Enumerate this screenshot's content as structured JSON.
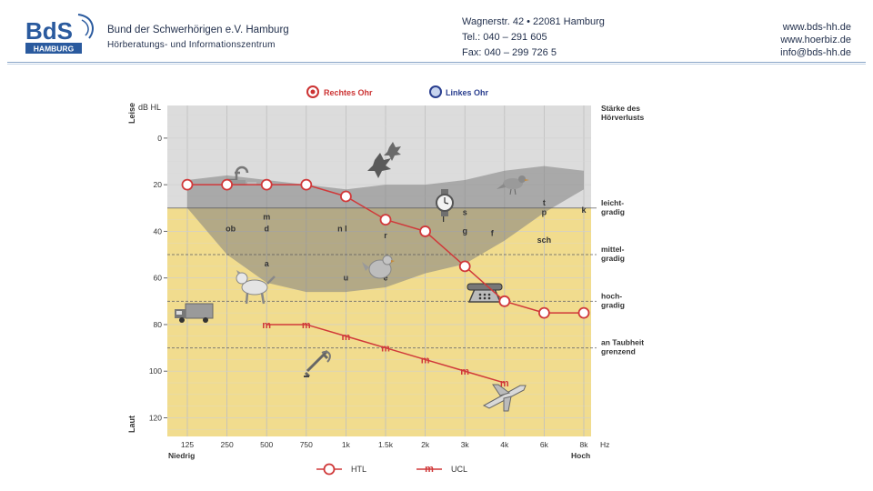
{
  "header": {
    "logo_text": "BdS",
    "logo_sub": "HAMBURG",
    "org_name": "Bund der Schwerhörigen e.V. Hamburg",
    "org_subtitle": "Hörberatungs- und Informationszentrum",
    "address": [
      "Wagnerstr. 42 • 22081 Hamburg",
      "Tel.: 040 – 291 605",
      "Fax: 040 – 299 726 5"
    ],
    "web": [
      "www.bds-hh.de",
      "www.hoerbiz.de",
      "info@bds-hh.de"
    ]
  },
  "colors": {
    "brand": "#2a5a9e",
    "ear_line": "#d0393a",
    "upper_band": "#dcdcdc",
    "lower_band": "#f1dc8e",
    "speech_banana": "#8c8c8c"
  },
  "chart_data": {
    "type": "line",
    "legend_top": [
      "Rechtes Ohr",
      "Linkes Ohr"
    ],
    "legend_bottom": [
      "HTL",
      "UCL"
    ],
    "y_unit_label": "dB HL",
    "y_label_top": "Leise",
    "y_label_bottom": "Laut",
    "y_ticks": [
      0,
      20,
      40,
      60,
      80,
      100,
      120
    ],
    "ylim": [
      -14,
      128
    ],
    "x_ticks": [
      "125",
      "250",
      "500",
      "750",
      "1k",
      "1.5k",
      "2k",
      "3k",
      "4k",
      "6k",
      "8k"
    ],
    "x_unit": "Hz",
    "x_label_left": "Niedrig",
    "x_label_right": "Hoch",
    "right_title": [
      "Stärke des",
      "Hörverlusts"
    ],
    "severity": [
      {
        "label": [
          "leicht-",
          "gradig"
        ],
        "boundary": 30
      },
      {
        "label": [
          "mittel-",
          "gradig"
        ],
        "boundary": 50
      },
      {
        "label": [
          "hoch-",
          "gradig"
        ],
        "boundary": 70
      },
      {
        "label": [
          "an Taubheit",
          "grenzend"
        ],
        "boundary": 90
      }
    ],
    "series": [
      {
        "name": "HTL",
        "x": [
          "125",
          "250",
          "500",
          "750",
          "1k",
          "1.5k",
          "2k",
          "3k",
          "4k",
          "6k",
          "8k"
        ],
        "values": [
          20,
          20,
          20,
          20,
          25,
          35,
          40,
          55,
          70,
          75,
          75
        ]
      },
      {
        "name": "UCL",
        "x": [
          "500",
          "750",
          "1k",
          "1.5k",
          "2k",
          "3k",
          "4k"
        ],
        "values": [
          80,
          80,
          85,
          90,
          95,
          100,
          105
        ]
      }
    ],
    "phonemes": [
      {
        "t": "ob",
        "x": "250",
        "y": 40
      },
      {
        "t": "m",
        "x": "500",
        "y": 35
      },
      {
        "t": "d",
        "x": "500",
        "y": 40
      },
      {
        "t": "n l",
        "x": "1k",
        "y": 40
      },
      {
        "t": "r",
        "x": "1.5k",
        "y": 43
      },
      {
        "t": "l",
        "x": "2k",
        "y": 36
      },
      {
        "t": "s",
        "x": "3k",
        "y": 33
      },
      {
        "t": "g",
        "x": "3k",
        "y": 41
      },
      {
        "t": "f",
        "x": "3k",
        "y": 42
      },
      {
        "t": "t",
        "x": "6k",
        "y": 29
      },
      {
        "t": "p",
        "x": "6k",
        "y": 33
      },
      {
        "t": "k",
        "x": "8k",
        "y": 32
      },
      {
        "t": "sch",
        "x": "6k",
        "y": 45
      },
      {
        "t": "a",
        "x": "500",
        "y": 55
      },
      {
        "t": "u",
        "x": "1k",
        "y": 61
      },
      {
        "t": "e",
        "x": "1.5k",
        "y": 61
      }
    ],
    "sound_icons": [
      "faucet-icon",
      "leaves-icon",
      "bird-icon",
      "watch-icon",
      "dog-icon",
      "hen-icon",
      "telephone-icon",
      "truck-icon",
      "jackhammer-icon",
      "airplane-icon"
    ]
  }
}
